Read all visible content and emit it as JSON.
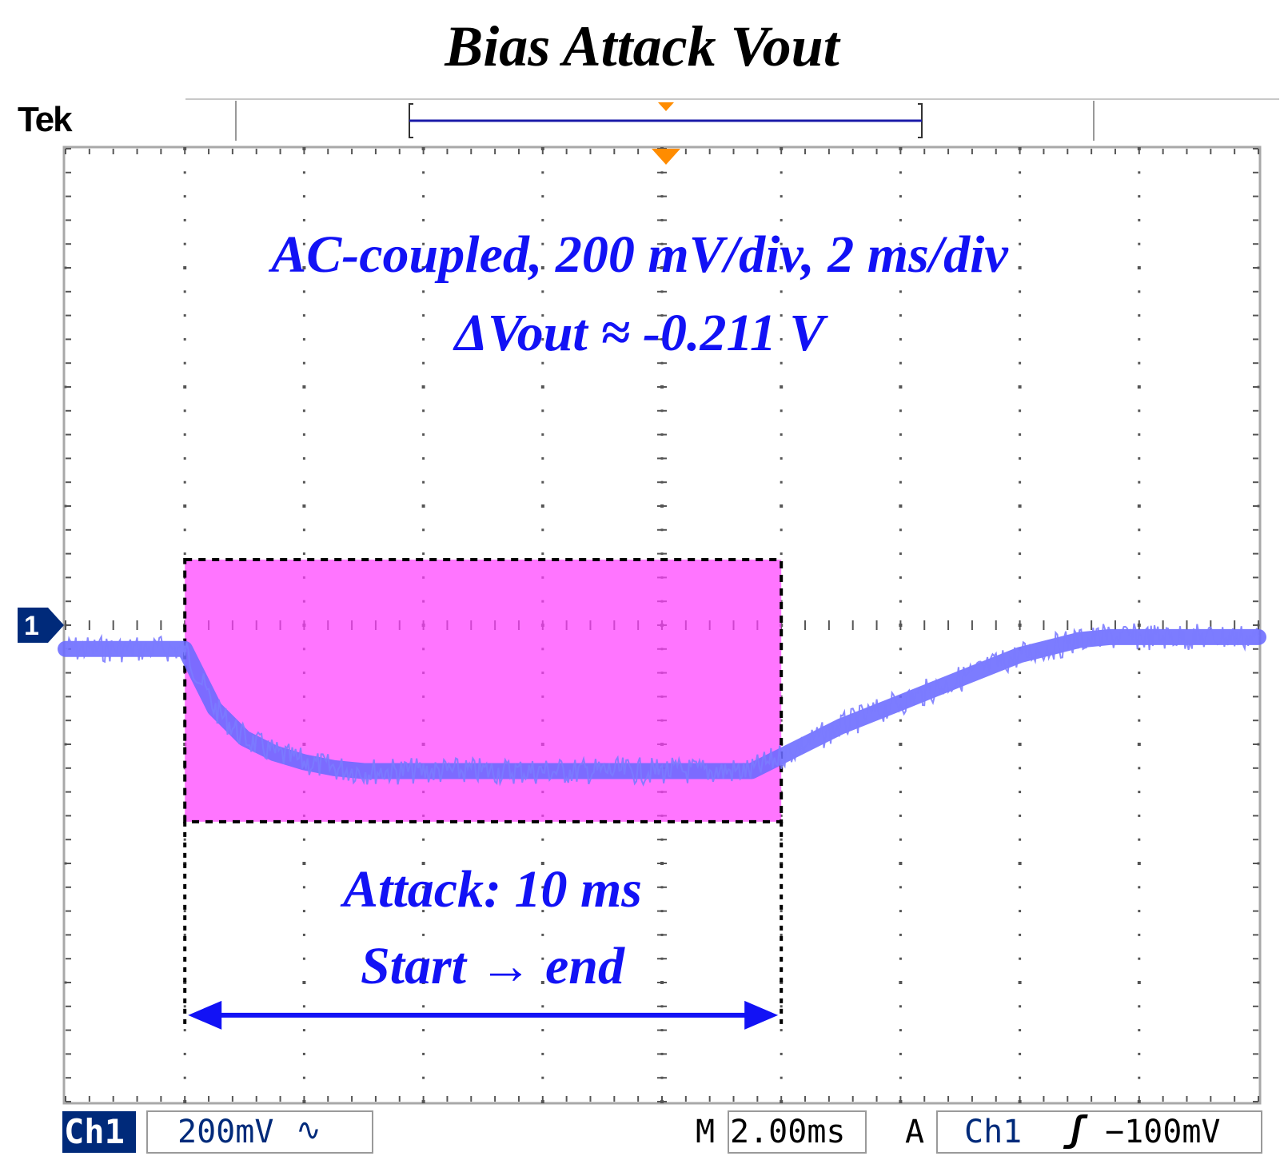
{
  "header": {
    "title": "Bias Attack Vout",
    "brand": "Tek"
  },
  "channel_marker": {
    "label": "1"
  },
  "annotations": {
    "settings_line": "AC-coupled, 200 mV/div, 2 ms/div",
    "delta_line": "ΔVout ≈ -0.211 V",
    "attack_line": "Attack: 10 ms",
    "span_line": "Start → end"
  },
  "status_bar": {
    "channel": "Ch1",
    "scale": "200mV",
    "coupling_glyph": "∿",
    "timebase_prefix": "M",
    "timebase": "2.00ms",
    "trigger_mode": "A",
    "trigger_source": "Ch1",
    "trigger_slope_glyph": "ʃ",
    "trigger_level": "−100mV"
  },
  "colors": {
    "waveform": "#6a6aff",
    "highlight_fill": "#ff40ff",
    "annotation_text": "#1212f5",
    "trigger_marker": "#ff8c00",
    "channel_badge": "#002a7a"
  },
  "chart_data": {
    "type": "line",
    "x_divisions": 10,
    "y_divisions": 8,
    "xlabel": "",
    "ylabel": "",
    "grid": true,
    "x_unit": "ms",
    "y_unit": "V",
    "x": [
      -10,
      -8.5,
      -8,
      -7.8,
      -7.5,
      -7,
      -6.5,
      -6,
      -5.5,
      -5,
      -4,
      -3,
      -2,
      -1,
      0,
      1,
      1.5,
      2,
      3,
      4,
      5,
      6,
      7,
      7.5,
      8,
      8.5,
      10
    ],
    "series": [
      {
        "values": [
          -0.04,
          -0.04,
          -0.04,
          -0.08,
          -0.14,
          -0.19,
          -0.215,
          -0.23,
          -0.24,
          -0.245,
          -0.245,
          -0.245,
          -0.245,
          -0.245,
          -0.245,
          -0.245,
          -0.245,
          -0.22,
          -0.17,
          -0.13,
          -0.09,
          -0.05,
          -0.025,
          -0.02,
          -0.02,
          -0.02,
          -0.02
        ]
      }
    ],
    "highlight": {
      "x_start": -8,
      "x_end": 2,
      "y_top": 0.11,
      "y_bottom": -0.33
    },
    "attack_arrow": {
      "x_start": -8,
      "x_end": 2
    }
  }
}
